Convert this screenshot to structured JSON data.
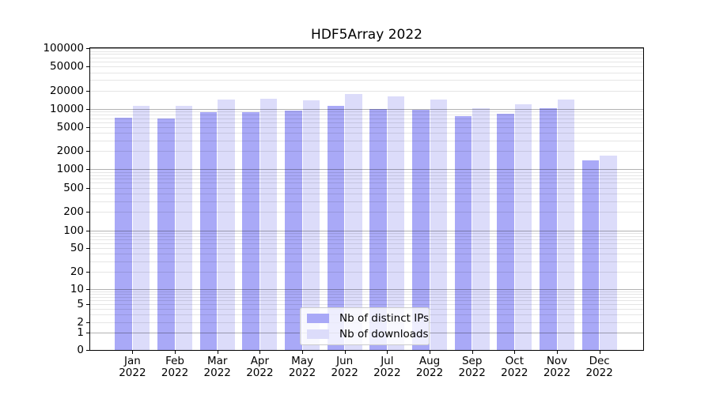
{
  "chart_data": {
    "type": "bar",
    "title": "HDF5Array 2022",
    "categories": [
      "Jan 2022",
      "Feb 2022",
      "Mar 2022",
      "Apr 2022",
      "May 2022",
      "Jun 2022",
      "Jul 2022",
      "Aug 2022",
      "Sep 2022",
      "Oct 2022",
      "Nov 2022",
      "Dec 2022"
    ],
    "series": [
      {
        "name": "Nb of distinct IPs",
        "color": "#a9a9f7",
        "values": [
          7100,
          7000,
          8900,
          8900,
          9300,
          11300,
          9800,
          9700,
          7500,
          8300,
          10300,
          1400
        ]
      },
      {
        "name": "Nb of downloads",
        "color": "#dcdcfa",
        "values": [
          11100,
          11200,
          14100,
          14500,
          13800,
          17400,
          15900,
          14100,
          10300,
          11800,
          14400,
          1700
        ]
      }
    ],
    "xlabel": "",
    "ylabel": "",
    "yscale": "log (compressed near zero)",
    "ylim": [
      0,
      100000
    ],
    "yticks": [
      100000,
      50000,
      20000,
      10000,
      5000,
      2000,
      1000,
      500,
      200,
      100,
      50,
      20,
      10,
      5,
      2,
      1,
      0
    ],
    "grid": "horizontal, light minor lines at 2-9 per decade, darker lines at powers of 10",
    "legend_position": "lower center"
  }
}
